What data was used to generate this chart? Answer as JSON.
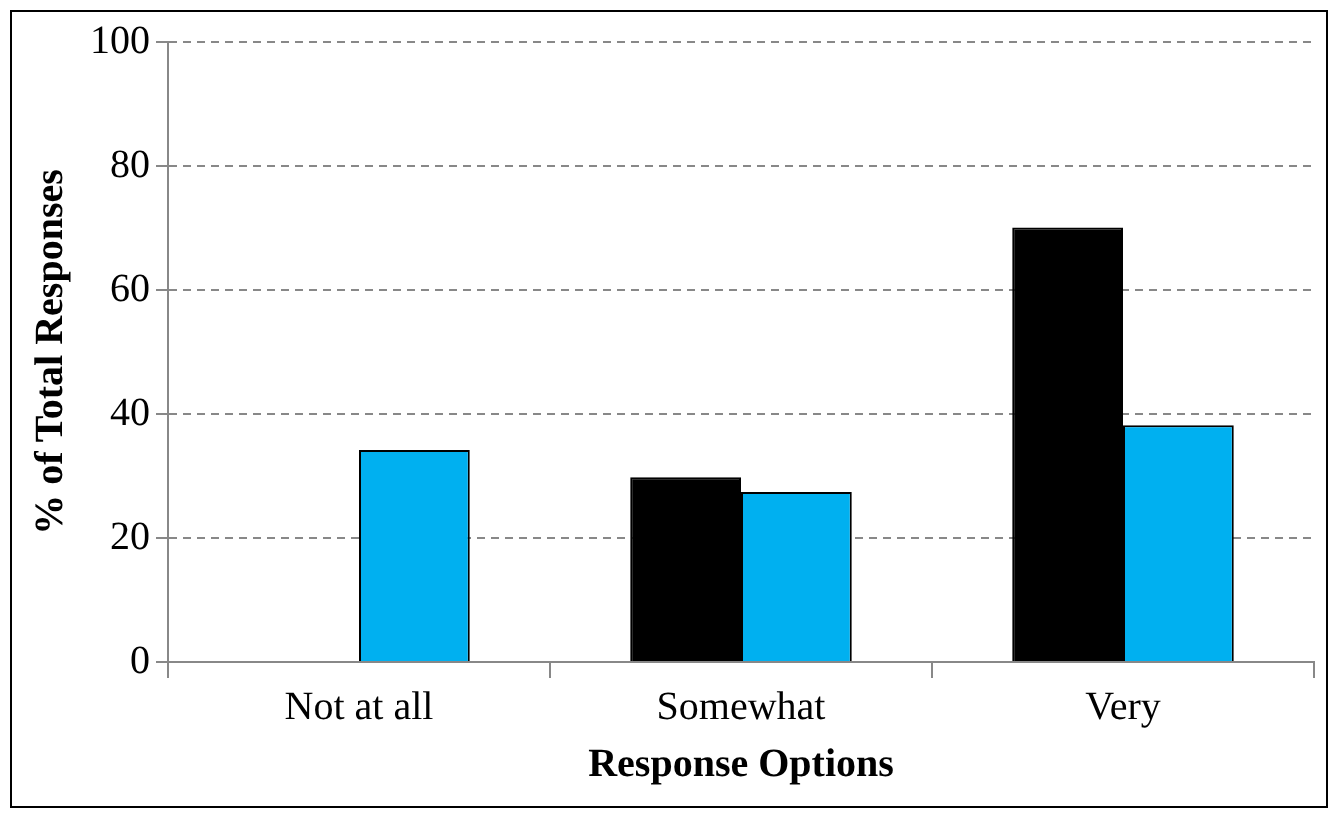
{
  "chart_data": {
    "type": "bar",
    "xlabel": "Response Options",
    "ylabel": "% of Total Responses",
    "categories": [
      "Not at all",
      "Somewhat",
      "Very"
    ],
    "series": [
      {
        "color": "#000000",
        "values": [
          0,
          29.8,
          70.1
        ]
      },
      {
        "color": "#00b0f0",
        "values": [
          34.2,
          27.4,
          38.2
        ]
      }
    ],
    "ylim": [
      0,
      100
    ],
    "yticks": [
      0,
      20,
      40,
      60,
      80,
      100
    ],
    "grid": "y",
    "legend": false
  }
}
